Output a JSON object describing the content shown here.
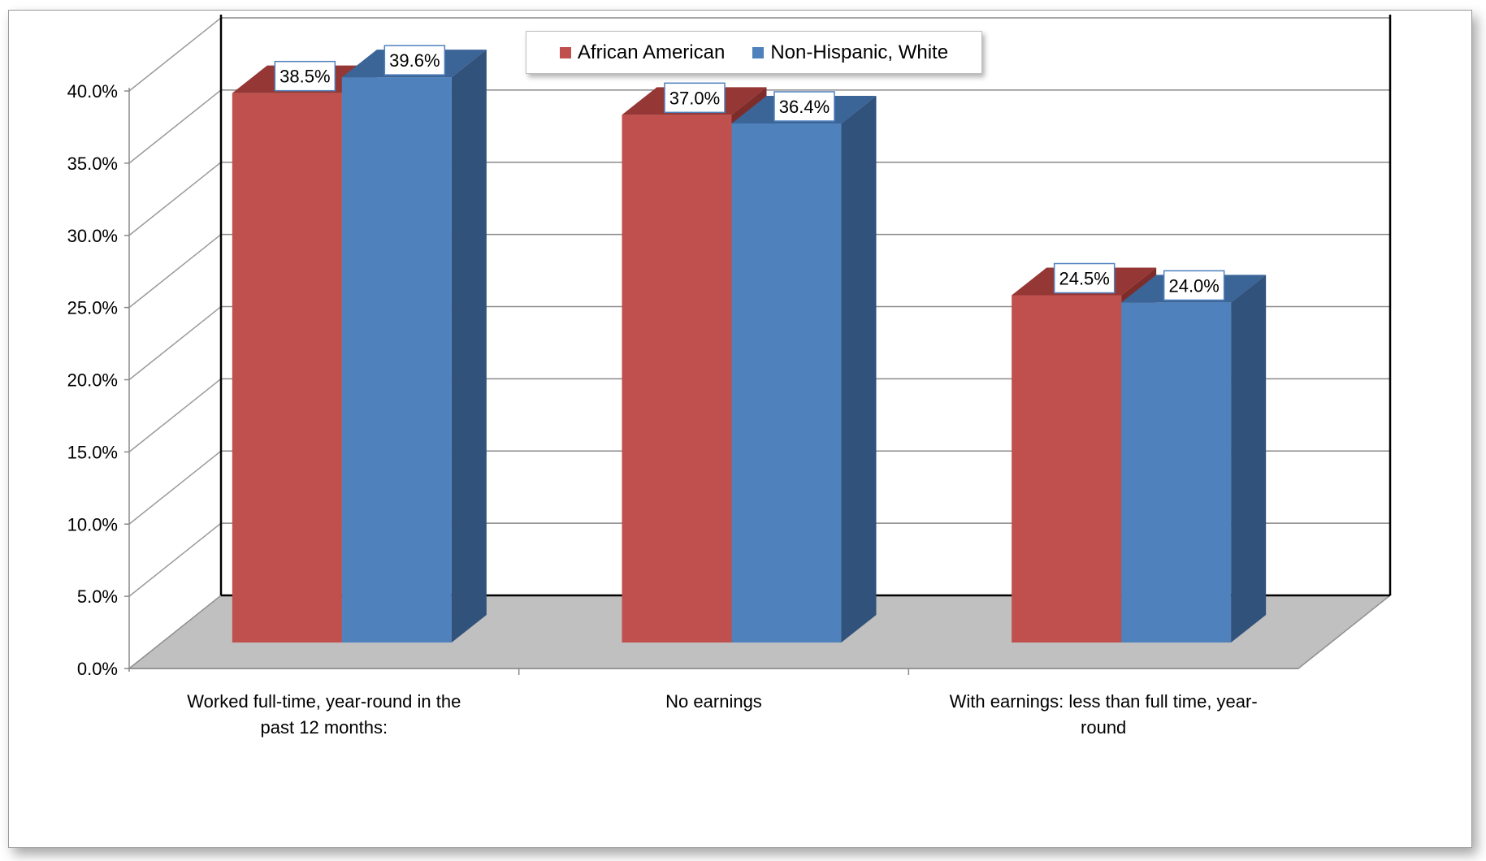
{
  "chart_data": {
    "type": "bar",
    "title": "",
    "xlabel": "",
    "ylabel": "",
    "categories": [
      [
        "Worked full-time, year-round in the",
        "past 12 months:"
      ],
      [
        "No earnings"
      ],
      [
        "With earnings: less than full time, year-",
        "round"
      ]
    ],
    "series": [
      {
        "name": "African American",
        "values": [
          38.5,
          37.0,
          24.5
        ],
        "labels": [
          "38.5%",
          "37.0%",
          "24.5%"
        ],
        "color": "#c0504d",
        "top_color": "#953735",
        "side_color": "#7e2c2a"
      },
      {
        "name": "Non-Hispanic, White",
        "values": [
          39.6,
          36.4,
          24.0
        ],
        "labels": [
          "39.6%",
          "36.4%",
          "24.0%"
        ],
        "color": "#4f81bd",
        "top_color": "#3b6497",
        "side_color": "#31527a"
      }
    ],
    "ylim": [
      0,
      40
    ],
    "yticks": [
      "0.0%",
      "5.0%",
      "10.0%",
      "15.0%",
      "20.0%",
      "25.0%",
      "30.0%",
      "35.0%",
      "40.0%"
    ],
    "grid": true,
    "legend_position": "top-center",
    "floor_color": "#c0c0c0"
  }
}
